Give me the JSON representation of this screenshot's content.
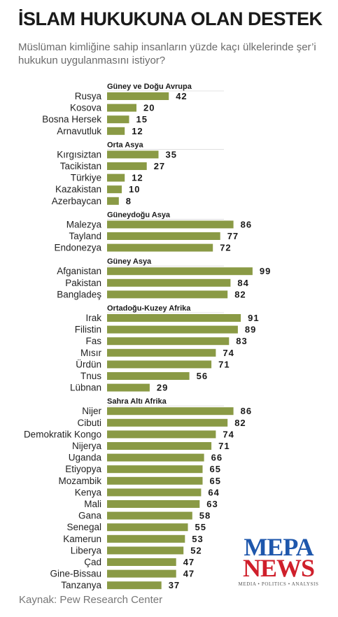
{
  "header": {
    "title": "İSLAM HUKUKUNA OLAN DESTEK",
    "subtitle": "Müslüman kimliğine sahip insanların yüzde kaçı ülkelerinde şer’i hukukun uygulanmasını istiyor?"
  },
  "source": "Kaynak: Pew Research Center",
  "logo": {
    "line1": "MEPA",
    "line2": "NEWS",
    "tagline": "MEDIA • POLITICS • ANALYSIS"
  },
  "colors": {
    "bar": "#8a9a45",
    "region_text": "#1a1a1a",
    "label_text": "#222222",
    "divider": "#cccccc"
  },
  "chart_data": {
    "type": "bar",
    "orientation": "horizontal",
    "unit": "percent",
    "xlim": [
      0,
      100
    ],
    "groups": [
      {
        "region": "Güney ve Doğu Avrupa",
        "categories": [
          "Rusya",
          "Kosova",
          "Bosna Hersek",
          "Arnavutluk"
        ],
        "values": [
          42,
          20,
          15,
          12
        ]
      },
      {
        "region": "Orta Asya",
        "categories": [
          "Kırgısiztan",
          "Tacikistan",
          "Türkiye",
          "Kazakistan",
          "Azerbaycan"
        ],
        "values": [
          35,
          27,
          12,
          10,
          8
        ]
      },
      {
        "region": "Güneydoğu Asya",
        "categories": [
          "Malezya",
          "Tayland",
          "Endonezya"
        ],
        "values": [
          86,
          77,
          72
        ]
      },
      {
        "region": "Güney Asya",
        "categories": [
          "Afganistan",
          "Pakistan",
          "Bangladeş"
        ],
        "values": [
          99,
          84,
          82
        ]
      },
      {
        "region": "Ortadoğu-Kuzey Afrika",
        "categories": [
          "Irak",
          "Filistin",
          "Fas",
          "Mısır",
          "Ürdün",
          "Tnus",
          "Lübnan"
        ],
        "values": [
          91,
          89,
          83,
          74,
          71,
          56,
          29
        ]
      },
      {
        "region": "Sahra Altı Afrika",
        "categories": [
          "Nijer",
          "Cibuti",
          "Demokratik Kongo",
          "Nijerya",
          "Uganda",
          "Etiyopya",
          "Mozambik",
          "Kenya",
          "Mali",
          "Gana",
          "Senegal",
          "Kamerun",
          "Liberya",
          "Çad",
          "Gine-Bissau",
          "Tanzanya"
        ],
        "values": [
          86,
          82,
          74,
          71,
          66,
          65,
          65,
          64,
          63,
          58,
          55,
          53,
          52,
          47,
          47,
          37
        ]
      }
    ]
  }
}
